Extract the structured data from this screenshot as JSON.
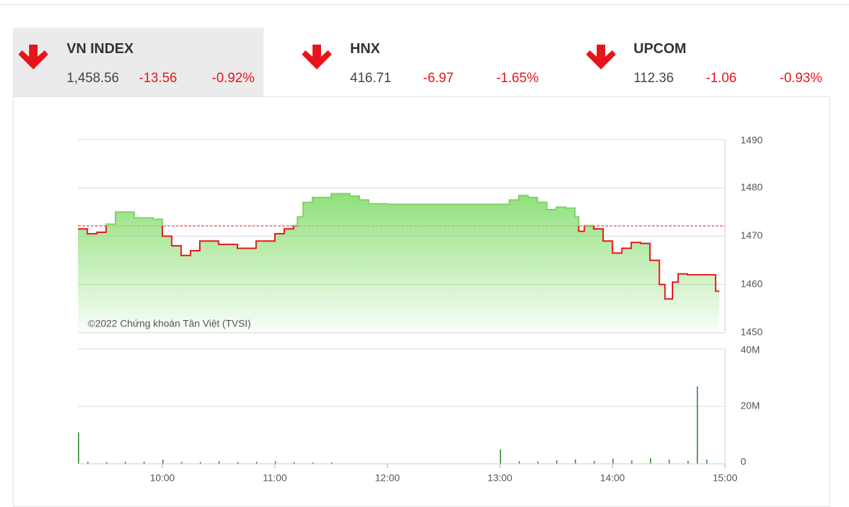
{
  "indices": [
    {
      "name": "VN INDEX",
      "value": "1,458.56",
      "change": "-13.56",
      "percent": "-0.92%"
    },
    {
      "name": "HNX",
      "value": "416.71",
      "change": "-6.97",
      "percent": "-1.65%"
    },
    {
      "name": "UPCOM",
      "value": "112.36",
      "change": "-1.06",
      "percent": "-0.93%"
    }
  ],
  "chart_data": [
    {
      "type": "line",
      "watermark": "©2022 Chứng khoán Tân Việt (TVSI)",
      "x": [
        "09:15",
        "09:20",
        "09:25",
        "09:30",
        "09:35",
        "09:45",
        "09:55",
        "10:00",
        "10:05",
        "10:10",
        "10:15",
        "10:20",
        "10:30",
        "10:40",
        "10:50",
        "11:00",
        "11:05",
        "11:10",
        "11:12",
        "11:15",
        "11:20",
        "11:30",
        "11:40",
        "11:45",
        "11:50",
        "12:00",
        "12:30",
        "13:00",
        "13:05",
        "13:10",
        "13:15",
        "13:20",
        "13:25",
        "13:30",
        "13:35",
        "13:40",
        "13:42",
        "13:45",
        "13:50",
        "13:55",
        "14:00",
        "14:05",
        "14:10",
        "14:15",
        "14:20",
        "14:25",
        "14:28",
        "14:32",
        "14:35",
        "14:40",
        "14:52",
        "14:55",
        "14:57"
      ],
      "series": [
        {
          "name": "VN INDEX",
          "color": "#e8141b",
          "fill": "#8fe07a",
          "values": [
            1471.5,
            1470.5,
            1470.8,
            1472.5,
            1475,
            1473.8,
            1473.5,
            1470,
            1468,
            1466,
            1467,
            1469,
            1468.3,
            1467.5,
            1469,
            1470.5,
            1471.5,
            1472.2,
            1474,
            1477,
            1478,
            1478.8,
            1478.3,
            1477.5,
            1476.7,
            1476.6,
            1476.6,
            1476.6,
            1477.5,
            1478.4,
            1478,
            1477,
            1475.5,
            1476,
            1475.8,
            1474,
            1471,
            1472.2,
            1471.5,
            1469,
            1466.5,
            1467.5,
            1468.7,
            1468.5,
            1465,
            1460,
            1457,
            1460.5,
            1462.2,
            1462,
            1462,
            1458.6,
            1458.6
          ]
        }
      ],
      "reference": 1472.12,
      "reference_color": "#e8141b",
      "xlim": [
        "09:15",
        "15:00"
      ],
      "xticks": [
        "10:00",
        "11:00",
        "12:00",
        "13:00",
        "14:00",
        "15:00"
      ],
      "ylim": [
        1450,
        1490
      ],
      "yticks": [
        1450,
        1460,
        1470,
        1480,
        1490
      ],
      "grid": true
    },
    {
      "type": "bar",
      "color": "#2e8b2e",
      "x": [
        "09:15",
        "09:20",
        "09:30",
        "09:40",
        "09:50",
        "10:00",
        "10:10",
        "10:20",
        "10:30",
        "10:40",
        "10:50",
        "11:00",
        "11:10",
        "11:20",
        "11:30",
        "13:00",
        "13:10",
        "13:20",
        "13:30",
        "13:40",
        "13:50",
        "14:00",
        "14:10",
        "14:20",
        "14:30",
        "14:40",
        "14:45",
        "14:50"
      ],
      "values": [
        11000000,
        800000,
        600000,
        700000,
        800000,
        1500000,
        700000,
        600000,
        900000,
        600000,
        700000,
        900000,
        600000,
        500000,
        500000,
        5000000,
        900000,
        800000,
        1200000,
        1500000,
        1000000,
        1800000,
        1200000,
        2000000,
        1500000,
        1000000,
        27000000,
        1500000
      ],
      "xlim": [
        "09:15",
        "15:00"
      ],
      "xticks": [
        "10:00",
        "11:00",
        "12:00",
        "13:00",
        "14:00",
        "15:00"
      ],
      "ylim": [
        0,
        40000000
      ],
      "yticks": [
        {
          "value": 0,
          "label": "0"
        },
        {
          "value": 20000000,
          "label": "20M"
        },
        {
          "value": 40000000,
          "label": "40M"
        }
      ],
      "grid": true
    }
  ]
}
